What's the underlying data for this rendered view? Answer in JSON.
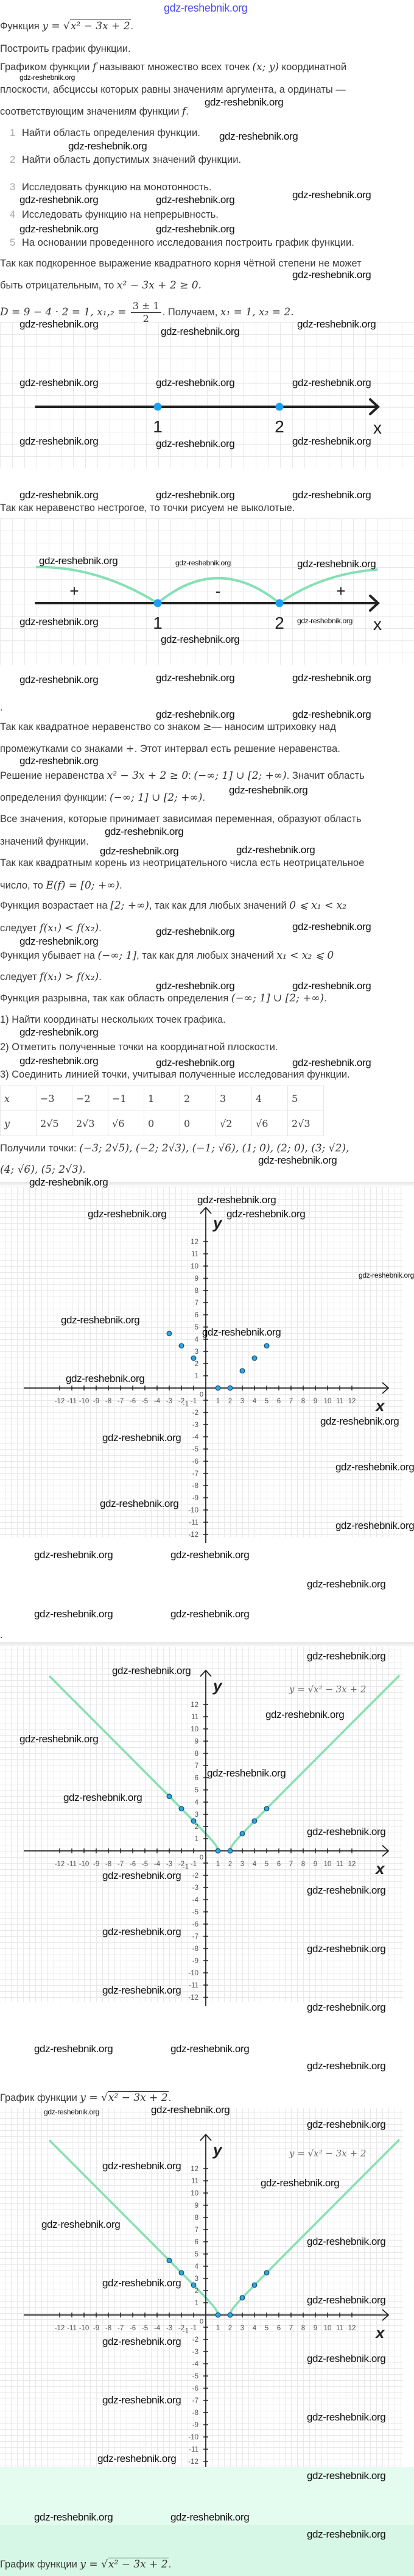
{
  "watermark": "gdz-reshebnik.org",
  "text": {
    "p0": [
      "Функция ",
      {
        "m": "y = "
      },
      {
        "r": "x² − 3x + 2"
      },
      "."
    ],
    "p1": [
      "Построить график функции."
    ],
    "p2": [
      "Графиком функции ",
      {
        "m": "f"
      },
      " называют множество всех точек ",
      {
        "m": "(x; y)"
      },
      " координатной"
    ],
    "p3": [
      "плоскости, абсциссы которых равны значениям аргумента, а ординаты —"
    ],
    "p4": [
      "соответствующим значениям функции ",
      {
        "m": "f"
      },
      "."
    ],
    "p5": [
      "Так как подкоренное выражение квадратного корня чётной степени не может"
    ],
    "p6": [
      "быть отрицательным, то ",
      {
        "m": "x² − 3x + 2 ≥ 0."
      }
    ],
    "p7": [
      {
        "m": "D = 9 − 4 · 2 = 1, x₁,₂ = "
      },
      {
        "f": [
          "3 ± 1",
          "2"
        ]
      },
      ". Получаем, ",
      {
        "m": "x₁ = 1, x₂ = 2."
      }
    ],
    "p8": [
      "Так как неравенство нестрогое, то точки рисуем не выколотые."
    ],
    "p9": [
      "."
    ],
    "p10": [
      "Так как квадратное неравенство со знаком ",
      {
        "m": "≥"
      },
      "— наносим штриховку над"
    ],
    "p11": [
      "промежутками со знаками ",
      {
        "m": "+"
      },
      ". Этот интервал есть решение неравенства."
    ],
    "p12": [
      "Решение неравенства ",
      {
        "m": "x² − 3x + 2 ≥ 0"
      },
      ": ",
      {
        "m": "(−∞; 1] ∪ [2; +∞)"
      },
      ". Значит область"
    ],
    "p13": [
      "определения функции: ",
      {
        "m": "(−∞; 1] ∪ [2; +∞)"
      },
      "."
    ],
    "p14": [
      "Все значения, которые принимает зависимая переменная, образуют область"
    ],
    "p15": [
      "значений функции."
    ],
    "p16": [
      "Так как квадратным корень из неотрицательного числа есть неотрицательное"
    ],
    "p17": [
      "число, то ",
      {
        "m": "E(f) = [0; +∞)"
      },
      "."
    ],
    "p18": [
      "Функция возрастает на ",
      {
        "m": "[2; +∞)"
      },
      ", так как для любых значений ",
      {
        "m": "0 ⩽ x₁ < x₂"
      }
    ],
    "p19": [
      "следует ",
      {
        "m": "f(x₁) < f(x₂)"
      },
      "."
    ],
    "p20": [
      "Функция убывает на ",
      {
        "m": "(−∞; 1]"
      },
      ", так как для любых значений ",
      {
        "m": "x₁ < x₂ ⩽ 0"
      }
    ],
    "p21": [
      "следует ",
      {
        "m": "f(x₁) > f(x₂)"
      },
      "."
    ],
    "p22": [
      "Функция разрывна, так как область определения ",
      {
        "m": "(−∞; 1] ∪ [2; +∞)"
      },
      "."
    ],
    "p23": [
      "1) Найти координаты нескольких точек графика."
    ],
    "p24": [
      "2) Отметить полученные точки на координатной плоскости."
    ],
    "p25": [
      "3) Соединить линией точки, учитывая полученные исследования функции."
    ],
    "p26": [
      "Получили точки: ",
      {
        "m": "(−3; 2√5), (−2; 2√3), (−1; √6), (1; 0), (2; 0), (3; √2),"
      }
    ],
    "p27": [
      {
        "m": "(4; √6), (5; 2√3)."
      }
    ],
    "p28": [
      "."
    ],
    "p29": [
      "График функции ",
      {
        "m": "y = "
      },
      {
        "r": "x² − 3x + 2"
      },
      "."
    ],
    "p30": [
      "График функции ",
      {
        "m": "y = "
      },
      {
        "r": "x² − 3x + 2"
      },
      "."
    ]
  },
  "steps": [
    {
      "num": "1",
      "label": "Найти область определения функции."
    },
    {
      "num": "2",
      "label": "Найти область допустимых значений функции."
    },
    {
      "num": "3",
      "label": "Исследовать функцию на монотонность."
    },
    {
      "num": "4",
      "label": "Исследовать функцию на непрерывность."
    },
    {
      "num": "5",
      "label": "На основании проведенного исследования построить график функции."
    }
  ],
  "number_line_1": {
    "points": [
      "1",
      "2"
    ],
    "axis_label": "x",
    "point_color": "#1ea0f0"
  },
  "number_line_2": {
    "points": [
      "1",
      "2"
    ],
    "axis_label": "x",
    "signs": [
      "+",
      "-",
      "+"
    ],
    "arc_color": "#86e0b4"
  },
  "table": {
    "rows": [
      [
        "x",
        "−3",
        "−2",
        "−1",
        "1",
        "2",
        "3",
        "4",
        "5"
      ],
      [
        "y",
        "2√5",
        "2√3",
        "√6",
        "0",
        "0",
        "√2",
        "√6",
        "2√3"
      ]
    ]
  },
  "chart_data": [
    {
      "type": "scatter",
      "xlabel": "x",
      "ylabel": "y",
      "xlim": [
        -12,
        12
      ],
      "ylim": [
        -12,
        12
      ],
      "x_ticks": [
        -12,
        -11,
        -10,
        -9,
        -8,
        -7,
        -6,
        -5,
        -4,
        -3,
        -2,
        -1,
        1,
        2,
        3,
        4,
        5,
        6,
        7,
        8,
        9,
        10,
        11,
        12
      ],
      "y_ticks": [
        -12,
        -11,
        -10,
        -9,
        -8,
        -7,
        -6,
        -5,
        -4,
        -3,
        -2,
        -1,
        1,
        2,
        3,
        4,
        5,
        6,
        7,
        8,
        9,
        10,
        11,
        12
      ],
      "origin_label": "0",
      "grid": true,
      "points": {
        "x": [
          -3,
          -2,
          -1,
          1,
          2,
          3,
          4,
          5
        ],
        "y": [
          4.47,
          3.46,
          2.45,
          0,
          0,
          1.41,
          2.45,
          3.46
        ]
      },
      "point_color": "#2aa8e0"
    },
    {
      "type": "line",
      "xlabel": "x",
      "ylabel": "y",
      "xlim": [
        -12,
        12
      ],
      "ylim": [
        -12,
        12
      ],
      "x_ticks": [
        -12,
        -11,
        -10,
        -9,
        -8,
        -7,
        -6,
        -5,
        -4,
        -3,
        -2,
        -1,
        1,
        2,
        3,
        4,
        5,
        6,
        7,
        8,
        9,
        10,
        11,
        12
      ],
      "y_ticks": [
        -12,
        -11,
        -10,
        -9,
        -8,
        -7,
        -6,
        -5,
        -4,
        -3,
        -2,
        -1,
        1,
        2,
        3,
        4,
        5,
        6,
        7,
        8,
        9,
        10,
        11,
        12
      ],
      "origin_label": "0",
      "grid": true,
      "curve_label": "y = √x² − 3x + 2",
      "curve_x_range": [
        -12.85,
        15.95
      ],
      "curve_color": "#86e0b4",
      "points": {
        "x": [
          -3,
          -2,
          -1,
          1,
          2,
          3,
          4,
          5
        ],
        "y": [
          4.47,
          3.46,
          2.45,
          0,
          0,
          1.41,
          2.45,
          3.46
        ]
      },
      "point_color": "#2aa8e0"
    },
    {
      "type": "line",
      "xlabel": "x",
      "ylabel": "y",
      "xlim": [
        -12,
        12
      ],
      "ylim": [
        -12,
        12
      ],
      "x_ticks": [
        -12,
        -11,
        -10,
        -9,
        -8,
        -7,
        -6,
        -5,
        -4,
        -3,
        -2,
        -1,
        1,
        2,
        3,
        4,
        5,
        6,
        7,
        8,
        9,
        10,
        11,
        12
      ],
      "y_ticks": [
        -12,
        -11,
        -10,
        -9,
        -8,
        -7,
        -6,
        -5,
        -4,
        -3,
        -2,
        -1,
        1,
        2,
        3,
        4,
        5,
        6,
        7,
        8,
        9,
        10,
        11,
        12
      ],
      "origin_label": "0",
      "grid": true,
      "curve_label": "y = √x² − 3x + 2",
      "curve_x_range": [
        -12.85,
        15.95
      ],
      "curve_color": "#86e0b4",
      "points": {
        "x": [
          -3,
          -2,
          -1,
          1,
          2,
          3,
          4,
          5
        ],
        "y": [
          4.47,
          3.46,
          2.45,
          0,
          0,
          1.41,
          2.45,
          3.46
        ]
      },
      "point_color": "#2aa8e0"
    }
  ]
}
